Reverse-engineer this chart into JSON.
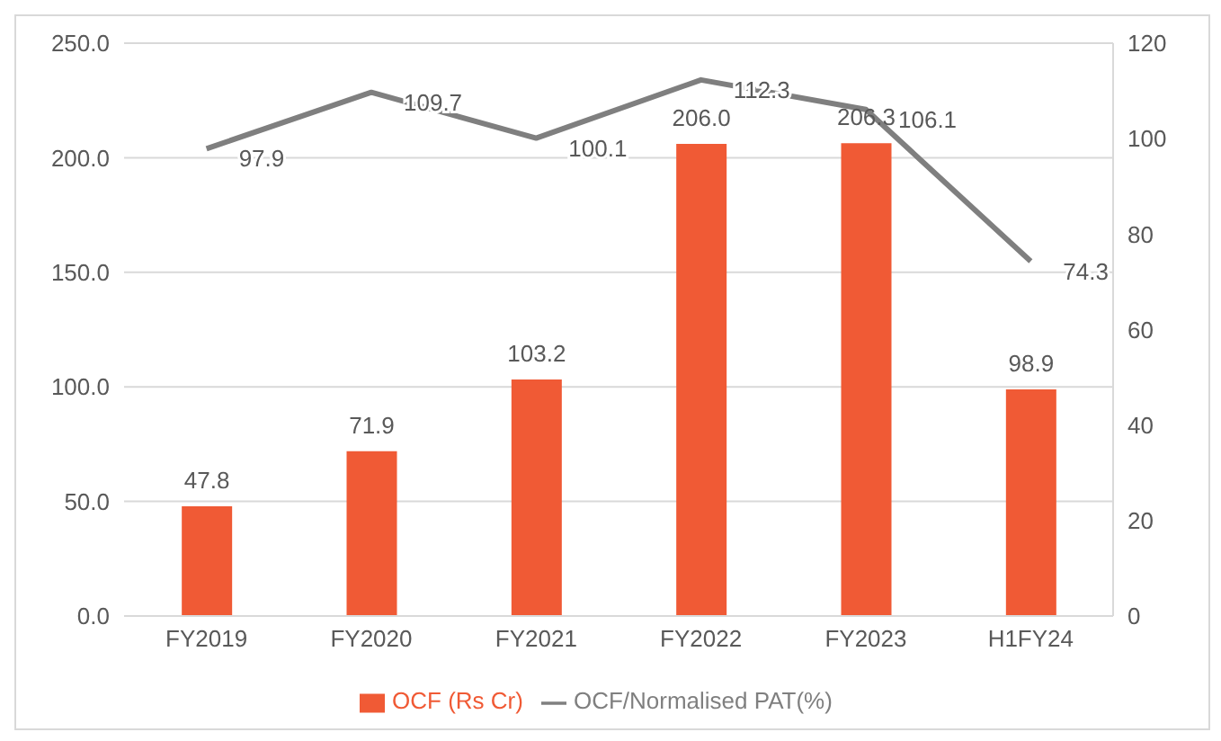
{
  "chart_data": {
    "type": "bar",
    "categories": [
      "FY2019",
      "FY2020",
      "FY2021",
      "FY2022",
      "FY2023",
      "H1FY24"
    ],
    "series": [
      {
        "name": "OCF (Rs Cr)",
        "color": "#f05a35",
        "values": [
          47.8,
          71.9,
          103.2,
          206.0,
          206.3,
          98.9
        ],
        "value_labels": [
          "47.8",
          "71.9",
          "103.2",
          "206.0",
          "206.3",
          "98.9"
        ]
      },
      {
        "name": "OCF/Normalised PAT(%)",
        "type": "line",
        "axis": "y2",
        "color": "#7f7f7f",
        "values": [
          97.9,
          109.7,
          100.1,
          112.3,
          106.1,
          74.3
        ],
        "value_labels": [
          "97.9",
          "109.7",
          "100.1",
          "112.3",
          "106.1",
          "74.3"
        ]
      }
    ],
    "ylim": [
      0,
      250
    ],
    "yticks": [
      {
        "value": 0,
        "label": "0.0"
      },
      {
        "value": 50,
        "label": "50.0"
      },
      {
        "value": 100,
        "label": "100.0"
      },
      {
        "value": 150,
        "label": "150.0"
      },
      {
        "value": 200,
        "label": "200.0"
      },
      {
        "value": 250,
        "label": "250.0"
      }
    ],
    "y2lim": [
      0,
      120
    ],
    "y2ticks": [
      0,
      20,
      40,
      60,
      80,
      100,
      120
    ],
    "grid": "y",
    "legend": "bottom",
    "marker": "none"
  }
}
